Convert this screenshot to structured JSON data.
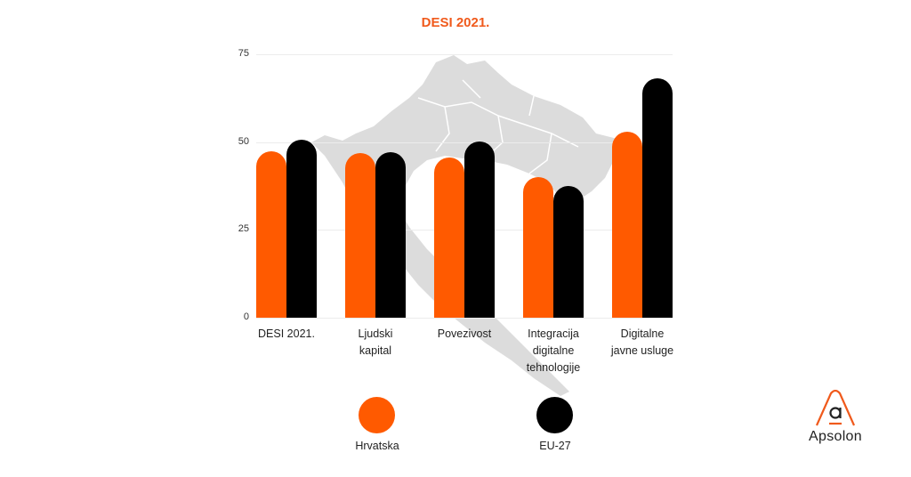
{
  "chart_data": {
    "type": "bar",
    "title": "DESI 2021.",
    "xlabel": "",
    "ylabel": "",
    "ylim": [
      0,
      75
    ],
    "yticks": [
      0,
      25,
      50,
      75
    ],
    "grid": true,
    "legend_position": "bottom",
    "categories": [
      "DESI 2021.",
      "Ljudski\nkapital",
      "Povezivost",
      "Integracija\ndigitalne\ntehnologije",
      "Digitalne\njavne usluge"
    ],
    "series": [
      {
        "name": "Hrvatska",
        "color": "#ff5a00",
        "values": [
          47.5,
          46.9,
          45.6,
          40.1,
          52.9
        ]
      },
      {
        "name": "EU-27",
        "color": "#000000",
        "values": [
          50.7,
          47.1,
          50.2,
          37.6,
          68.1
        ]
      }
    ]
  },
  "title": "DESI 2021.",
  "legend": [
    {
      "label": "Hrvatska",
      "color": "#ff5a00"
    },
    {
      "label": "EU-27",
      "color": "#000000"
    }
  ],
  "brand": {
    "name": "Apsolon",
    "accent": "#f05a1c"
  }
}
